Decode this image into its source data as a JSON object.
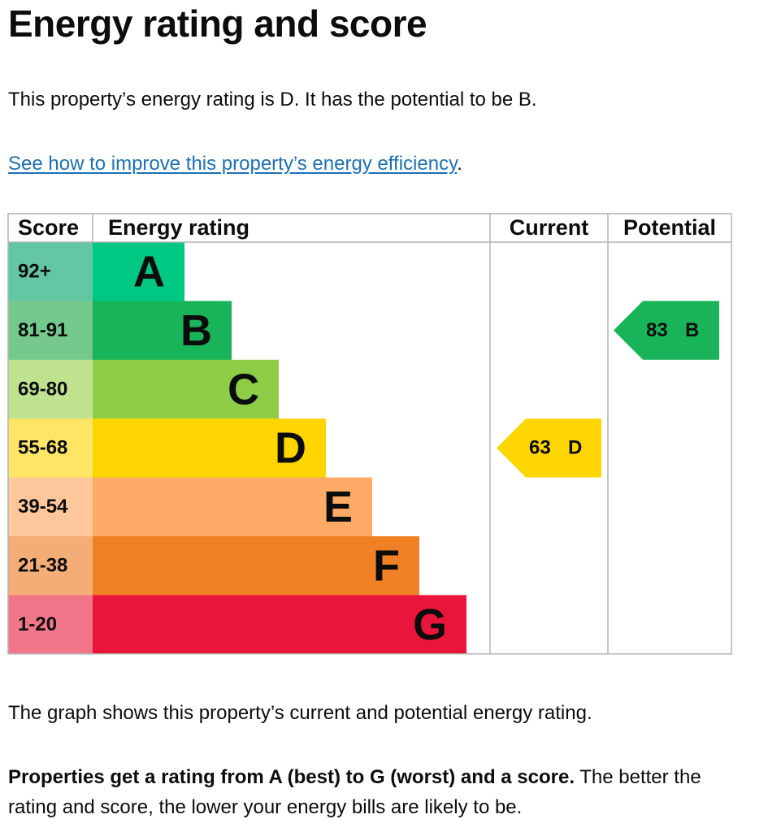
{
  "title": "Energy rating and score",
  "intro": "This property’s energy rating is D. It has the potential to be B.",
  "link": {
    "text": "See how to improve this property’s energy efficiency",
    "after": "."
  },
  "graph": {
    "headers": [
      "Score",
      "Energy rating",
      "Current",
      "Potential"
    ],
    "bands": [
      {
        "score": "92+",
        "rating": "A",
        "color": "#00c781",
        "score_color": "#64c7a4"
      },
      {
        "score": "81-91",
        "rating": "B",
        "color": "#19b459",
        "score_color": "#75c98c"
      },
      {
        "score": "69-80",
        "rating": "C",
        "color": "#8dce46",
        "score_color": "#bfe28f"
      },
      {
        "score": "55-68",
        "rating": "D",
        "color": "#ffd500",
        "score_color": "#ffe566"
      },
      {
        "score": "39-54",
        "rating": "E",
        "color": "#fcaa65",
        "score_color": "#fdc79b"
      },
      {
        "score": "21-38",
        "rating": "F",
        "color": "#ef8023",
        "score_color": "#f5ad77"
      },
      {
        "score": "1-20",
        "rating": "G",
        "color": "#e9153b",
        "score_color": "#f2758a"
      }
    ],
    "current": {
      "score": 63,
      "rating": "D"
    },
    "potential": {
      "score": 83,
      "rating": "B"
    }
  },
  "caption": "The graph shows this property’s current and potential energy rating.",
  "note": {
    "bold": "Properties get a rating from A (best) to G (worst) and a score.",
    "rest": " The better the rating and score, the lower your energy bills are likely to be."
  }
}
